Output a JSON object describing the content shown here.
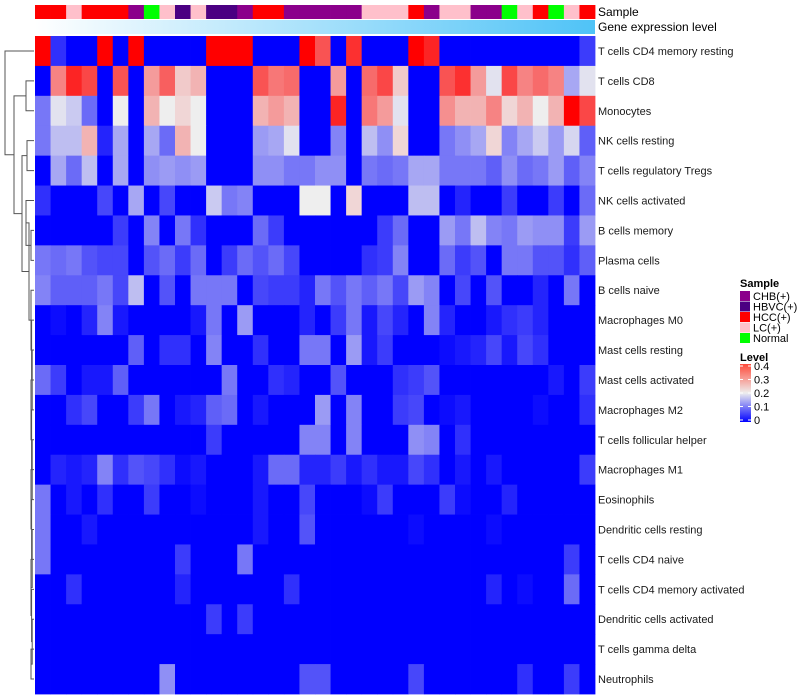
{
  "chart_data": {
    "type": "heatmap",
    "annotation_labels": {
      "sample": "Sample",
      "gene_expression": "Gene expression level"
    },
    "rows": [
      "T cells CD4 memory resting",
      "T cells CD8",
      "Monocytes",
      "NK cells resting",
      "T cells regulatory  Tregs",
      "NK cells activated",
      "B cells memory",
      "Plasma cells",
      "B cells naive",
      "Macrophages M0",
      "Mast cells resting",
      "Mast cells activated",
      "Macrophages M2",
      "T cells follicular helper",
      "Macrophages M1",
      "Eosinophils",
      "Dendritic cells resting",
      "T cells CD4 naive",
      "T cells CD4 memory activated",
      "Dendritic cells activated",
      "T cells gamma delta",
      "Neutrophils"
    ],
    "samples": [
      "HCC(+)",
      "HCC(+)",
      "LC(+)",
      "HCC(+)",
      "HCC(+)",
      "HCC(+)",
      "CHB(+)",
      "Normal",
      "LC(+)",
      "HBVC(+)",
      "LC(+)",
      "HBVC(+)",
      "HBVC(+)",
      "CHB(+)",
      "HCC(+)",
      "HCC(+)",
      "CHB(+)",
      "CHB(+)",
      "CHB(+)",
      "CHB(+)",
      "CHB(+)",
      "LC(+)",
      "LC(+)",
      "LC(+)",
      "HCC(+)",
      "CHB(+)",
      "LC(+)",
      "LC(+)",
      "CHB(+)",
      "CHB(+)",
      "Normal",
      "LC(+)",
      "HCC(+)",
      "Normal",
      "LC(+)",
      "HCC(+)"
    ],
    "values": [
      [
        0.4,
        0.04,
        0,
        0,
        0.4,
        0,
        0.4,
        0,
        0,
        0,
        0,
        0.4,
        0.4,
        0.4,
        0,
        0,
        0,
        0.4,
        0.33,
        0,
        0.36,
        0,
        0,
        0,
        0.4,
        0.37,
        0,
        0,
        0,
        0,
        0,
        0,
        0,
        0,
        0,
        0.05
      ],
      [
        0,
        0.29,
        0.37,
        0.34,
        0,
        0.33,
        0,
        0.27,
        0.32,
        0.23,
        0.25,
        0,
        0,
        0,
        0.33,
        0.3,
        0.31,
        0,
        0,
        0.27,
        0,
        0.31,
        0.34,
        0.23,
        0,
        0,
        0.33,
        0.36,
        0.27,
        0.19,
        0.34,
        0.29,
        0.31,
        0.29,
        0.14,
        0.19
      ],
      [
        0.1,
        0.19,
        0.17,
        0.09,
        0,
        0.2,
        0,
        0.25,
        0.2,
        0.22,
        0.2,
        0,
        0,
        0,
        0.25,
        0.27,
        0.25,
        0,
        0,
        0.37,
        0,
        0.3,
        0.27,
        0.19,
        0,
        0,
        0.28,
        0.25,
        0.25,
        0.29,
        0.22,
        0.25,
        0.2,
        0.25,
        0.4,
        0.34
      ],
      [
        0.1,
        0.16,
        0.16,
        0.25,
        0.03,
        0.14,
        0,
        0.14,
        0.09,
        0.25,
        0.2,
        0,
        0,
        0,
        0.13,
        0.14,
        0.19,
        0,
        0,
        0.11,
        0,
        0.16,
        0.12,
        0.22,
        0,
        0,
        0.1,
        0.12,
        0.14,
        0.22,
        0.11,
        0.14,
        0.17,
        0.13,
        0.18,
        0.08
      ],
      [
        0,
        0.14,
        0.09,
        0.16,
        0,
        0.14,
        0,
        0.12,
        0.13,
        0.12,
        0.13,
        0,
        0,
        0,
        0.12,
        0.12,
        0.1,
        0.1,
        0.12,
        0.12,
        0,
        0.1,
        0.09,
        0.1,
        0.14,
        0.14,
        0.1,
        0.1,
        0.1,
        0.08,
        0.12,
        0.09,
        0.1,
        0.13,
        0.08,
        0.11
      ],
      [
        0.04,
        0,
        0,
        0,
        0.06,
        0,
        0.14,
        0,
        0.06,
        0,
        0,
        0.17,
        0.1,
        0.11,
        0,
        0,
        0,
        0.2,
        0.2,
        0,
        0.22,
        0,
        0,
        0,
        0.16,
        0.16,
        0,
        0.03,
        0,
        0,
        0.05,
        0,
        0,
        0.05,
        0,
        0.09
      ],
      [
        0,
        0,
        0,
        0,
        0,
        0.05,
        0,
        0.11,
        0,
        0.1,
        0.04,
        0,
        0,
        0,
        0.09,
        0.05,
        0,
        0,
        0,
        0,
        0,
        0,
        0.05,
        0.09,
        0,
        0,
        0.13,
        0.1,
        0.16,
        0.11,
        0.1,
        0.13,
        0.12,
        0.12,
        0.05,
        0.13
      ],
      [
        0.1,
        0.09,
        0.1,
        0.07,
        0.06,
        0.06,
        0,
        0.07,
        0.09,
        0.05,
        0.09,
        0,
        0.05,
        0.09,
        0.07,
        0.09,
        0.06,
        0,
        0,
        0,
        0,
        0.04,
        0.05,
        0.11,
        0,
        0,
        0.09,
        0.05,
        0.07,
        0,
        0.1,
        0.1,
        0.07,
        0.07,
        0.04,
        0.08
      ],
      [
        0.11,
        0.08,
        0.08,
        0.08,
        0.1,
        0.06,
        0.16,
        0,
        0.07,
        0,
        0.1,
        0.1,
        0.1,
        0,
        0.06,
        0.05,
        0.05,
        0.03,
        0.1,
        0.07,
        0.1,
        0.08,
        0.1,
        0.06,
        0.13,
        0.11,
        0,
        0.06,
        0,
        0.07,
        0,
        0,
        0.03,
        0,
        0.1,
        0
      ],
      [
        0,
        0.01,
        0,
        0.03,
        0.11,
        0.02,
        0,
        0,
        0,
        0,
        0.02,
        0.1,
        0,
        0.13,
        0,
        0,
        0,
        0.03,
        0,
        0.05,
        0.1,
        0.02,
        0.06,
        0.03,
        0,
        0.11,
        0.03,
        0,
        0,
        0.02,
        0.04,
        0.05,
        0.03,
        0,
        0,
        0
      ],
      [
        0,
        0,
        0,
        0,
        0,
        0,
        0.08,
        0,
        0.04,
        0.04,
        0,
        0.11,
        0,
        0,
        0.04,
        0,
        0,
        0.1,
        0.1,
        0,
        0.13,
        0.02,
        0.05,
        0,
        0,
        0,
        0.01,
        0.02,
        0.03,
        0.06,
        0.02,
        0.06,
        0.04,
        0,
        0,
        0
      ],
      [
        0.09,
        0.05,
        0,
        0.02,
        0.02,
        0.08,
        0,
        0,
        0,
        0,
        0,
        0,
        0.1,
        0,
        0,
        0.04,
        0.03,
        0,
        0,
        0.07,
        0,
        0,
        0,
        0.04,
        0.05,
        0.07,
        0,
        0,
        0,
        0,
        0,
        0,
        0,
        0.02,
        0,
        0.05
      ],
      [
        0,
        0,
        0.04,
        0.06,
        0,
        0,
        0.05,
        0.1,
        0,
        0.02,
        0.03,
        0.08,
        0.09,
        0,
        0.02,
        0,
        0,
        0,
        0.13,
        0,
        0.11,
        0,
        0,
        0.05,
        0.06,
        0,
        0.01,
        0.02,
        0,
        0,
        0,
        0,
        0.01,
        0,
        0,
        0.04
      ],
      [
        0,
        0,
        0,
        0,
        0,
        0,
        0,
        0,
        0,
        0,
        0,
        0.05,
        0,
        0,
        0,
        0,
        0,
        0.11,
        0.11,
        0,
        0.11,
        0,
        0,
        0,
        0.12,
        0.11,
        0,
        0.04,
        0,
        0,
        0,
        0,
        0,
        0,
        0,
        0
      ],
      [
        0,
        0.03,
        0.02,
        0.03,
        0.11,
        0.04,
        0.07,
        0.06,
        0.04,
        0.01,
        0.02,
        0,
        0,
        0,
        0.02,
        0.09,
        0.09,
        0.03,
        0.03,
        0.05,
        0.02,
        0.04,
        0.02,
        0.02,
        0.06,
        0.04,
        0,
        0.02,
        0,
        0.02,
        0,
        0,
        0,
        0,
        0,
        0.05
      ],
      [
        0.1,
        0,
        0.02,
        0,
        0.04,
        0,
        0,
        0.05,
        0,
        0,
        0.01,
        0,
        0,
        0,
        0.02,
        0,
        0,
        0.06,
        0,
        0,
        0,
        0.01,
        0.05,
        0,
        0,
        0,
        0.05,
        0.01,
        0,
        0,
        0.03,
        0,
        0,
        0,
        0,
        0
      ],
      [
        0.1,
        0,
        0,
        0.02,
        0,
        0,
        0,
        0,
        0,
        0,
        0,
        0,
        0,
        0,
        0.02,
        0,
        0,
        0.07,
        0,
        0,
        0,
        0,
        0,
        0,
        0.01,
        0,
        0,
        0,
        0,
        0.01,
        0,
        0,
        0,
        0,
        0,
        0
      ],
      [
        0.1,
        0,
        0,
        0,
        0,
        0,
        0,
        0,
        0,
        0.05,
        0,
        0,
        0,
        0.1,
        0,
        0,
        0,
        0,
        0,
        0,
        0,
        0,
        0,
        0,
        0,
        0,
        0,
        0,
        0,
        0,
        0,
        0,
        0,
        0,
        0.05,
        0
      ],
      [
        0,
        0,
        0.04,
        0,
        0,
        0,
        0,
        0,
        0,
        0.03,
        0,
        0,
        0,
        0,
        0,
        0,
        0.04,
        0,
        0,
        0,
        0,
        0,
        0,
        0,
        0,
        0,
        0,
        0,
        0,
        0.03,
        0,
        0.01,
        0,
        0,
        0.09,
        0
      ],
      [
        0,
        0,
        0,
        0,
        0,
        0,
        0,
        0,
        0,
        0,
        0,
        0.05,
        0,
        0.05,
        0,
        0,
        0,
        0,
        0,
        0,
        0,
        0,
        0,
        0,
        0,
        0,
        0,
        0,
        0,
        0,
        0,
        0,
        0,
        0,
        0,
        0
      ],
      [
        0,
        0,
        0,
        0,
        0,
        0,
        0,
        0,
        0,
        0,
        0,
        0,
        0,
        0,
        0,
        0,
        0,
        0,
        0,
        0,
        0,
        0,
        0,
        0,
        0,
        0,
        0,
        0,
        0,
        0,
        0,
        0,
        0,
        0,
        0,
        0
      ],
      [
        0,
        0,
        0,
        0,
        0,
        0,
        0,
        0,
        0.12,
        0,
        0,
        0,
        0,
        0,
        0,
        0,
        0,
        0.07,
        0.07,
        0,
        0,
        0,
        0,
        0,
        0.06,
        0,
        0,
        0,
        0,
        0,
        0,
        0.04,
        0,
        0,
        0.05,
        0
      ]
    ],
    "color_scale": {
      "low": "#0000FF",
      "mid": "#EEEEEE",
      "high": "#FF0000",
      "range": [
        0,
        0.4
      ]
    },
    "legend_sample": {
      "title": "Sample",
      "items": [
        {
          "label": "CHB(+)",
          "color": "#8B008B"
        },
        {
          "label": "HBVC(+)",
          "color": "#4B0082"
        },
        {
          "label": "HCC(+)",
          "color": "#FF0000"
        },
        {
          "label": "LC(+)",
          "color": "#FFC0CB"
        },
        {
          "label": "Normal",
          "color": "#00FF00"
        }
      ]
    },
    "legend_level": {
      "title": "Level",
      "ticks": [
        "0.4",
        "0.3",
        "0.2",
        "0.1",
        "0"
      ]
    },
    "gene_expression_colors": {
      "low": "#FFFFFF",
      "high": "#4FC3F7"
    }
  }
}
